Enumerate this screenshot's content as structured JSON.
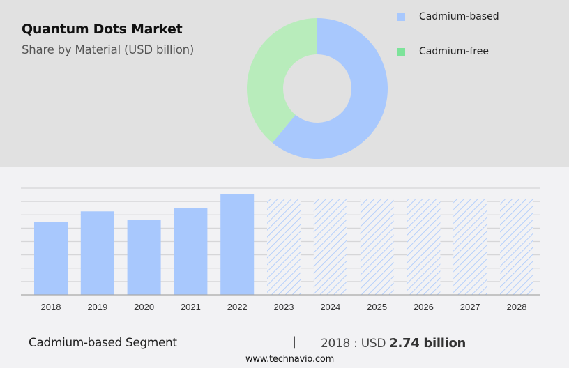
{
  "header": {
    "title": "Quantum Dots Market",
    "subtitle": "Share by Material (USD billion)"
  },
  "legend": [
    {
      "label": "Cadmium-based",
      "color": "#a8c8fd"
    },
    {
      "label": "Cadmium-free",
      "color": "#7de39a"
    }
  ],
  "footer": {
    "segment_label": "Cadmium-based Segment",
    "separator": "|",
    "year_prefix": "2018 : USD",
    "value_text": "2.74 billion",
    "website": "www.technavio.com"
  },
  "colors": {
    "cadmium_based": "#a8c8fd",
    "cadmium_free": "#b8ecbb",
    "cadmium_free_legend": "#7de39a",
    "top_bg": "#e1e1e1",
    "bottom_bg": "#f2f2f4",
    "gridline": "#d6d6d8",
    "axis": "#a8a8a8",
    "hatch": "#a8c8fd"
  },
  "chart_data": [
    {
      "type": "pie",
      "subtype": "donut",
      "title": "Quantum Dots Market",
      "subtitle": "Share by Material (USD billion)",
      "labels": [
        "Cadmium-based",
        "Cadmium-free"
      ],
      "values": [
        61,
        39
      ],
      "legend_position": "right"
    },
    {
      "type": "bar",
      "series_name": "Cadmium-based",
      "categories": [
        "2018",
        "2019",
        "2020",
        "2021",
        "2022",
        "2023",
        "2024",
        "2025",
        "2026",
        "2027",
        "2028"
      ],
      "values": [
        2.74,
        3.13,
        2.82,
        3.25,
        3.77,
        3.6,
        3.6,
        3.6,
        3.6,
        3.6,
        3.6
      ],
      "forecast_from": "2023",
      "forecast_style": "hatched placeholder (values not shown)",
      "xlabel": "",
      "ylabel": "",
      "ylim": [
        0,
        4.0
      ],
      "grid": true,
      "annotation": "2018 : USD 2.74 billion"
    }
  ]
}
